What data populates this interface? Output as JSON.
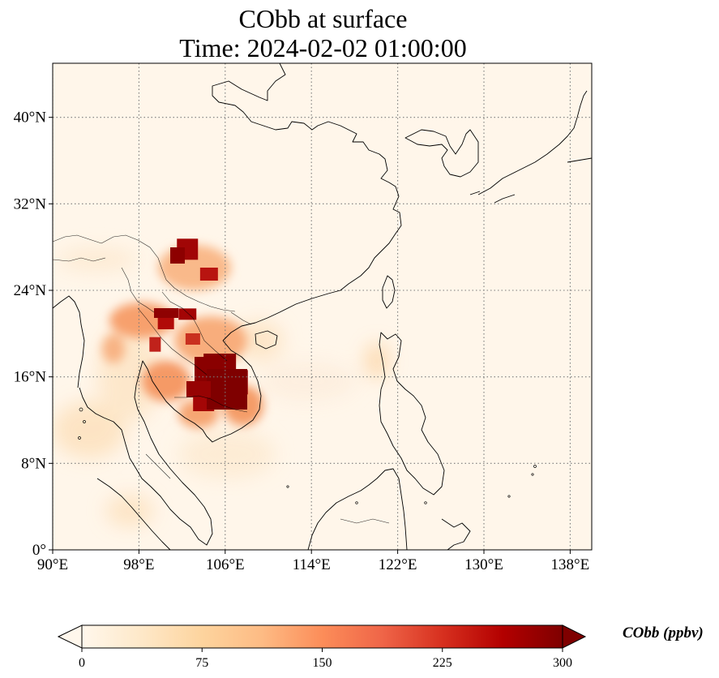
{
  "title": {
    "line1": "CObb at surface",
    "line2": "Time: 2024-02-02 01:00:00"
  },
  "map": {
    "projection": "PlateCarree",
    "lon_range": [
      90,
      140
    ],
    "lat_range": [
      0,
      45
    ],
    "gridlines": true,
    "lat_ticks": [
      {
        "value": 0,
        "label": "0°"
      },
      {
        "value": 8,
        "label": "8°N"
      },
      {
        "value": 16,
        "label": "16°N"
      },
      {
        "value": 24,
        "label": "24°N"
      },
      {
        "value": 32,
        "label": "32°N"
      },
      {
        "value": 40,
        "label": "40°N"
      }
    ],
    "lon_ticks": [
      {
        "value": 90,
        "label": "90°E"
      },
      {
        "value": 98,
        "label": "98°E"
      },
      {
        "value": 106,
        "label": "106°E"
      },
      {
        "value": 114,
        "label": "114°E"
      },
      {
        "value": 122,
        "label": "122°E"
      },
      {
        "value": 130,
        "label": "130°E"
      },
      {
        "value": 138,
        "label": "138°E"
      }
    ],
    "hotspots_lon_lat": [
      [
        102.5,
        27.8
      ],
      [
        104.5,
        25.5
      ],
      [
        100.5,
        21.0
      ],
      [
        102.5,
        21.8
      ],
      [
        105.5,
        16.5
      ],
      [
        106.5,
        14.5
      ],
      [
        104.0,
        13.5
      ],
      [
        107.5,
        15.5
      ],
      [
        99.5,
        19.0
      ],
      [
        103.0,
        19.5
      ]
    ]
  },
  "colorbar": {
    "label": "CObb (ppbv)",
    "min": 0,
    "max": 300,
    "extend": "both",
    "colormap": "OrRd",
    "colors": [
      "#fff7ec",
      "#fee8c8",
      "#fdd49e",
      "#fdbb84",
      "#fc8d59",
      "#ef6548",
      "#d7301f",
      "#b30000",
      "#7f0000"
    ],
    "ticks": [
      {
        "value": 0,
        "label": "0"
      },
      {
        "value": 75,
        "label": "75"
      },
      {
        "value": 150,
        "label": "150"
      },
      {
        "value": 225,
        "label": "225"
      },
      {
        "value": 300,
        "label": "300"
      }
    ]
  }
}
